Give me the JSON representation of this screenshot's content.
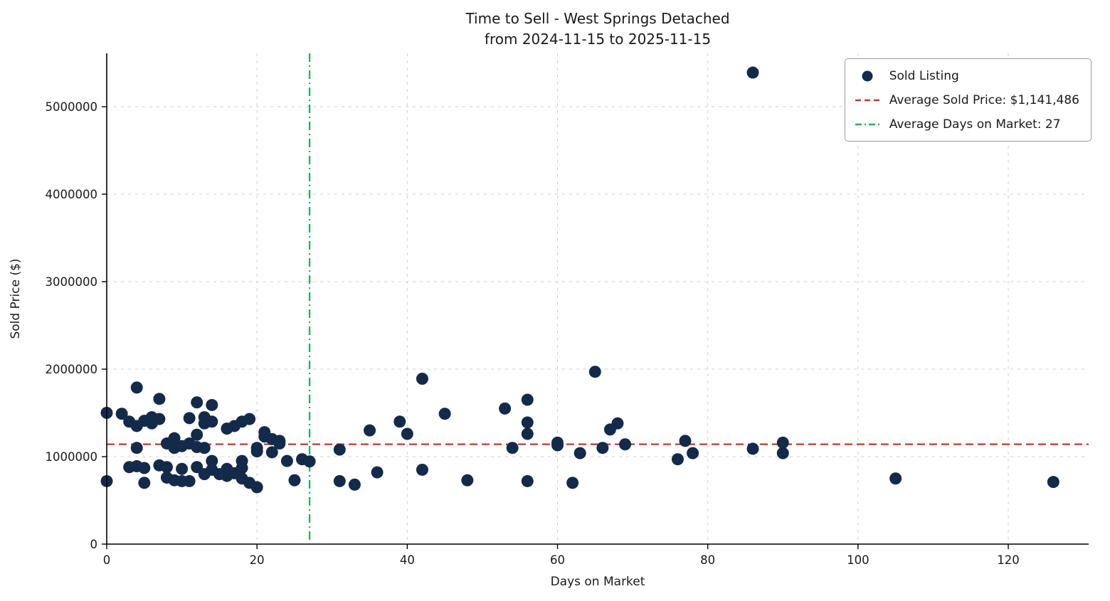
{
  "chart_data": {
    "type": "scatter",
    "title": "Time to Sell - West Springs Detached",
    "subtitle": "from 2024-11-15 to 2025-11-15",
    "xlabel": "Days on Market",
    "ylabel": "Sold Price ($)",
    "xlim": [
      0,
      130.7
    ],
    "ylim": [
      0,
      5610000
    ],
    "xticks": [
      0,
      20,
      40,
      60,
      80,
      100,
      120
    ],
    "xtick_labels": [
      "0",
      "20",
      "40",
      "60",
      "80",
      "100",
      "120"
    ],
    "yticks": [
      0,
      1000000,
      2000000,
      3000000,
      4000000,
      5000000
    ],
    "ytick_labels": [
      "0",
      "1000000",
      "2000000",
      "3000000",
      "4000000",
      "5000000"
    ],
    "grid": true,
    "grid_color": "#cfcfcf",
    "legend_position": "top-right",
    "series": [
      {
        "name": "Sold Listing",
        "type": "scatter",
        "color": "#132a4a",
        "points": [
          [
            0,
            1500000
          ],
          [
            0,
            720000
          ],
          [
            2,
            1490000
          ],
          [
            3,
            1400000
          ],
          [
            3,
            880000
          ],
          [
            4,
            1790000
          ],
          [
            4,
            1350000
          ],
          [
            4,
            1100000
          ],
          [
            4,
            890000
          ],
          [
            5,
            1410000
          ],
          [
            5,
            870000
          ],
          [
            5,
            700000
          ],
          [
            6,
            1450000
          ],
          [
            6,
            1380000
          ],
          [
            7,
            1660000
          ],
          [
            7,
            1430000
          ],
          [
            7,
            900000
          ],
          [
            8,
            1150000
          ],
          [
            8,
            880000
          ],
          [
            8,
            760000
          ],
          [
            9,
            1210000
          ],
          [
            9,
            1100000
          ],
          [
            9,
            730000
          ],
          [
            10,
            1120000
          ],
          [
            10,
            860000
          ],
          [
            10,
            720000
          ],
          [
            11,
            1440000
          ],
          [
            11,
            1150000
          ],
          [
            11,
            720000
          ],
          [
            12,
            1620000
          ],
          [
            12,
            1250000
          ],
          [
            12,
            1110000
          ],
          [
            12,
            880000
          ],
          [
            13,
            1450000
          ],
          [
            13,
            1380000
          ],
          [
            13,
            1100000
          ],
          [
            13,
            800000
          ],
          [
            14,
            1590000
          ],
          [
            14,
            1400000
          ],
          [
            14,
            950000
          ],
          [
            14,
            850000
          ],
          [
            15,
            800000
          ],
          [
            16,
            1320000
          ],
          [
            16,
            860000
          ],
          [
            16,
            780000
          ],
          [
            17,
            1350000
          ],
          [
            17,
            810000
          ],
          [
            18,
            1400000
          ],
          [
            18,
            950000
          ],
          [
            18,
            870000
          ],
          [
            18,
            750000
          ],
          [
            19,
            1430000
          ],
          [
            19,
            700000
          ],
          [
            20,
            1100000
          ],
          [
            20,
            1060000
          ],
          [
            20,
            650000
          ],
          [
            21,
            1280000
          ],
          [
            21,
            1230000
          ],
          [
            22,
            1200000
          ],
          [
            22,
            1050000
          ],
          [
            23,
            1180000
          ],
          [
            23,
            1150000
          ],
          [
            24,
            950000
          ],
          [
            25,
            730000
          ],
          [
            26,
            970000
          ],
          [
            27,
            945000
          ],
          [
            31,
            1080000
          ],
          [
            31,
            720000
          ],
          [
            33,
            680000
          ],
          [
            35,
            1300000
          ],
          [
            36,
            820000
          ],
          [
            39,
            1400000
          ],
          [
            40,
            1260000
          ],
          [
            42,
            1890000
          ],
          [
            42,
            850000
          ],
          [
            45,
            1490000
          ],
          [
            48,
            730000
          ],
          [
            53,
            1550000
          ],
          [
            54,
            1100000
          ],
          [
            56,
            1650000
          ],
          [
            56,
            1390000
          ],
          [
            56,
            1260000
          ],
          [
            56,
            720000
          ],
          [
            60,
            1160000
          ],
          [
            60,
            1130000
          ],
          [
            62,
            700000
          ],
          [
            63,
            1040000
          ],
          [
            65,
            1970000
          ],
          [
            66,
            1100000
          ],
          [
            67,
            1310000
          ],
          [
            68,
            1380000
          ],
          [
            69,
            1140000
          ],
          [
            76,
            970000
          ],
          [
            77,
            1180000
          ],
          [
            78,
            1040000
          ],
          [
            86,
            5390000
          ],
          [
            86,
            1090000
          ],
          [
            90,
            1160000
          ],
          [
            90,
            1040000
          ],
          [
            105,
            750000
          ],
          [
            126,
            710000
          ]
        ]
      }
    ],
    "reference_lines": [
      {
        "name": "Average Sold Price: $1,141,486",
        "orientation": "horizontal",
        "value": 1141486,
        "color": "#c0392b",
        "dash": "dashed"
      },
      {
        "name": "Average Days on Market: 27",
        "orientation": "vertical",
        "value": 27,
        "color": "#27ae60",
        "dash": "dashdot"
      }
    ]
  }
}
